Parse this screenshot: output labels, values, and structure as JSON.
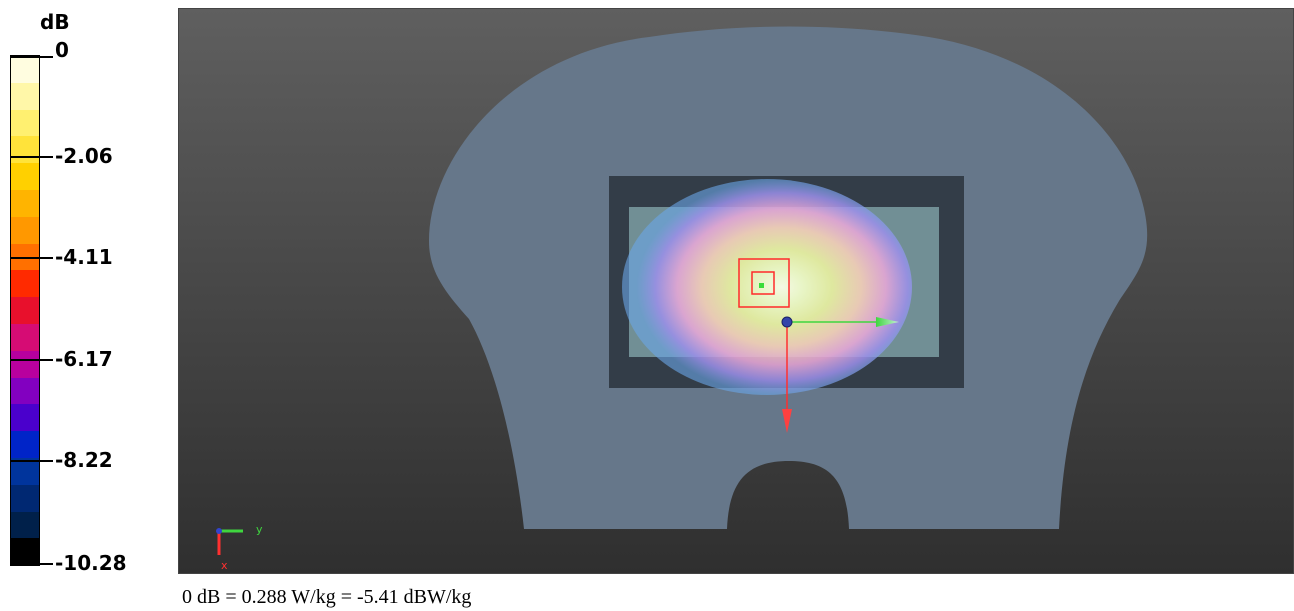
{
  "legend": {
    "unit": "dB",
    "ticks": [
      "0",
      "-2.06",
      "-4.11",
      "-6.17",
      "-8.22",
      "-10.28"
    ],
    "swatches": [
      "#fffde0",
      "#fff7a8",
      "#fff070",
      "#ffe33a",
      "#ffd000",
      "#ffb400",
      "#ff9800",
      "#ff7000",
      "#ff2a00",
      "#e8102c",
      "#d60c74",
      "#b8009e",
      "#8200c0",
      "#4a00cc",
      "#0024c8",
      "#00349c",
      "#002872",
      "#00204a",
      "#000000"
    ]
  },
  "viewport": {
    "axes_gizmo": {
      "y_label": "y",
      "x_label": "x"
    }
  },
  "caption": "0 dB = 0.288 W/kg = -5.41 dBW/kg"
}
